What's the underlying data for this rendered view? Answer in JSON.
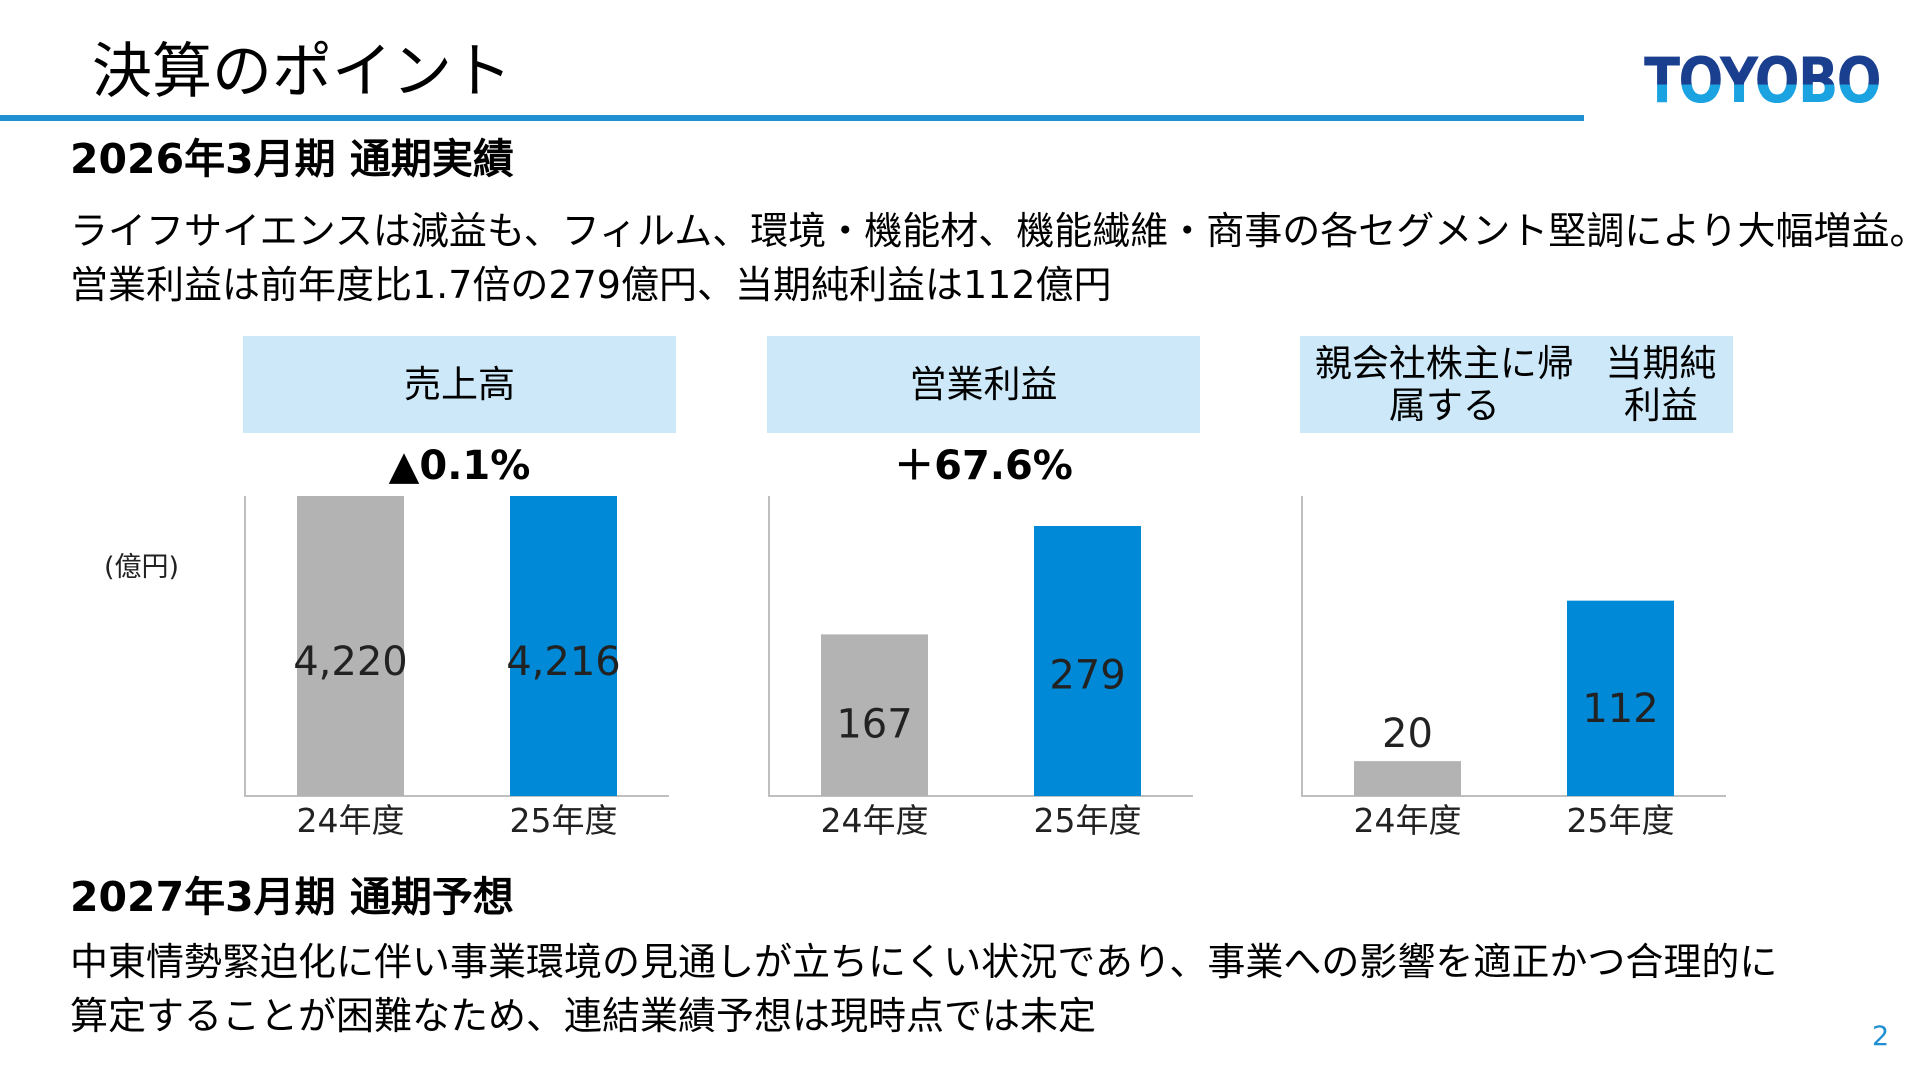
{
  "page": {
    "title": "決算のポイント",
    "logo_text": "TOYOBO",
    "page_number": "2",
    "accent_color": "#1f8fd1"
  },
  "results": {
    "heading": "2026年3月期 通期実績",
    "lines": [
      "ライフサイエンスは減益も、フィルム、環境・機能材、機能繊維・商事の各セグメント堅調により大幅増益。",
      "営業利益は前年度比1.7倍の279億円、当期純利益は112億円"
    ]
  },
  "unit_label": "(億円)",
  "chart_data": [
    {
      "type": "bar",
      "title": "売上高",
      "change": "▲0.1%",
      "categories": [
        "24年度",
        "25年度"
      ],
      "values": [
        4220,
        4216
      ],
      "value_labels": [
        "4,220",
        "4,216"
      ],
      "bar_colors": [
        "#b3b3b3",
        "#0089d6"
      ],
      "ylim": [
        0,
        4216
      ]
    },
    {
      "type": "bar",
      "title": "営業利益",
      "change": "＋67.6%",
      "categories": [
        "24年度",
        "25年度"
      ],
      "values": [
        167,
        279
      ],
      "value_labels": [
        "167",
        "279"
      ],
      "bar_colors": [
        "#b3b3b3",
        "#0089d6"
      ],
      "ylim": [
        0,
        310
      ]
    },
    {
      "type": "bar",
      "title": "親会社株主に帰属する\n当期純利益",
      "change": "",
      "categories": [
        "24年度",
        "25年度"
      ],
      "values": [
        20,
        112
      ],
      "value_labels": [
        "20",
        "112"
      ],
      "bar_colors": [
        "#b3b3b3",
        "#0089d6"
      ],
      "ylim": [
        0,
        172
      ]
    }
  ],
  "forecast": {
    "heading": "2027年3月期 通期予想",
    "lines": [
      "中東情勢緊迫化に伴い事業環境の見通しが立ちにくい状況であり、事業への影響を適正かつ合理的に",
      "算定することが困難なため、連結業績予想は現時点では未定"
    ]
  }
}
